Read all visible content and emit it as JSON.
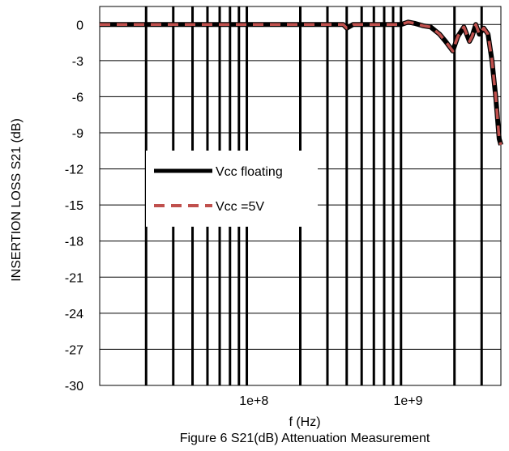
{
  "chart_data": {
    "type": "line",
    "caption": "Figure 6 S21(dB) Attenuation Measurement",
    "xlabel": "f (Hz)",
    "ylabel": "INSERTION LOSS S21 (dB)",
    "x_scale": "log",
    "xlim": [
      10000000,
      4000000000
    ],
    "ylim": [
      -30,
      1.5
    ],
    "y_ticks": [
      0,
      -3,
      -6,
      -9,
      -12,
      -15,
      -18,
      -21,
      -24,
      -27,
      -30
    ],
    "y_tick_labels": [
      "0",
      "-3",
      "-6",
      "-9",
      "-12",
      "-15",
      "-18",
      "-21",
      "-24",
      "-27",
      "-30"
    ],
    "x_tick_labels": [
      {
        "value": 100000000,
        "label": "1e+8"
      },
      {
        "value": 1000000000,
        "label": "1e+9"
      }
    ],
    "grid": {
      "horizontal": true,
      "vertical_log_decades": true
    },
    "legend_placement": "center-left",
    "series": [
      {
        "name": "Vcc floating",
        "color": "#000000",
        "dash": "solid",
        "x": [
          10000000,
          100000000,
          300000000,
          380000000,
          400000000,
          440000000,
          900000000,
          1000000000,
          1100000000,
          1250000000,
          1400000000,
          1600000000,
          1750000000,
          1950000000,
          2100000000,
          2300000000,
          2500000000,
          2600000000,
          2750000000,
          2900000000,
          3100000000,
          3300000000,
          3500000000,
          3700000000,
          3900000000,
          4000000000
        ],
        "y": [
          0,
          0,
          0,
          0,
          -0.3,
          0,
          0,
          0.2,
          0.1,
          -0.1,
          -0.2,
          -0.8,
          -1.4,
          -2.2,
          -1.0,
          -0.2,
          -1.4,
          -1.0,
          0.0,
          -0.8,
          -0.3,
          -0.8,
          -3.0,
          -6.0,
          -9.5,
          -10.0
        ]
      },
      {
        "name": "Vcc =5V",
        "color": "#c0504d",
        "dash": "dashed",
        "x": [
          10000000,
          100000000,
          300000000,
          380000000,
          400000000,
          440000000,
          900000000,
          1000000000,
          1100000000,
          1250000000,
          1400000000,
          1600000000,
          1750000000,
          1950000000,
          2100000000,
          2300000000,
          2500000000,
          2600000000,
          2750000000,
          2900000000,
          3100000000,
          3300000000,
          3500000000,
          3700000000,
          3900000000,
          4000000000
        ],
        "y": [
          0,
          0,
          0,
          0,
          -0.3,
          0,
          0,
          0.2,
          0.1,
          -0.1,
          -0.2,
          -0.8,
          -1.4,
          -2.2,
          -1.0,
          -0.2,
          -1.4,
          -1.0,
          0.0,
          -0.8,
          -0.3,
          -0.8,
          -3.0,
          -6.0,
          -9.5,
          -10.0
        ]
      }
    ]
  }
}
